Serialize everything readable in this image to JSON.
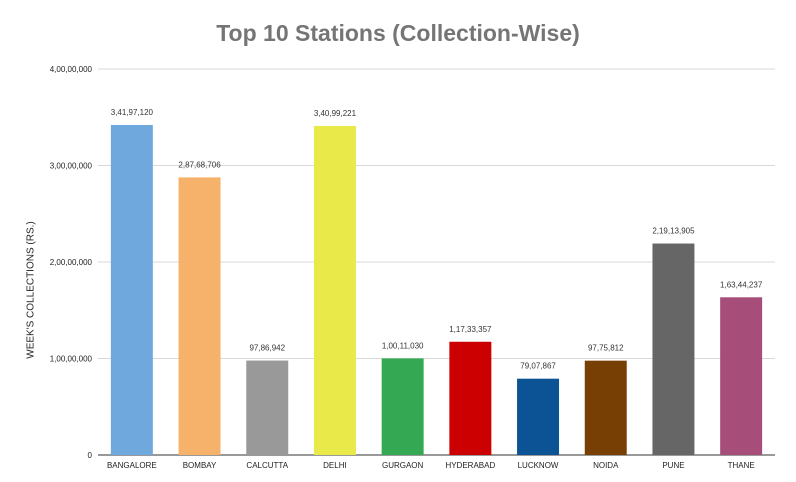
{
  "chart_data": {
    "type": "bar",
    "title": "Top 10 Stations (Collection-Wise)",
    "xlabel": "",
    "ylabel": "WEEK'S COLLECTIONS (RS.)",
    "ylim": [
      0,
      40000000
    ],
    "yticks": [
      0,
      10000000,
      20000000,
      30000000,
      40000000
    ],
    "ytick_labels": [
      "0",
      "1,00,00,000",
      "2,00,00,000",
      "3,00,00,000",
      "4,00,00,000"
    ],
    "grid": true,
    "legend": "none",
    "categories": [
      "BANGALORE",
      "BOMBAY",
      "CALCUTTA",
      "DELHI",
      "GURGAON",
      "HYDERABAD",
      "LUCKNOW",
      "NOIDA",
      "PUNE",
      "THANE"
    ],
    "values": [
      34197120,
      28768706,
      9786942,
      34099221,
      10011030,
      11733357,
      7907867,
      9775812,
      21913905,
      16344237
    ],
    "value_labels": [
      "3,41,97,120",
      "2,87,68,706",
      "97,86,942",
      "3,40,99,221",
      "1,00,11,030",
      "1,17,33,357",
      "79,07,867",
      "97,75,812",
      "2,19,13,905",
      "1,63,44,237"
    ],
    "colors": [
      "#6fa8dc",
      "#f6b26b",
      "#999999",
      "#e9e94a",
      "#34a853",
      "#cc0000",
      "#0b5394",
      "#783f04",
      "#666666",
      "#a64d79"
    ]
  }
}
